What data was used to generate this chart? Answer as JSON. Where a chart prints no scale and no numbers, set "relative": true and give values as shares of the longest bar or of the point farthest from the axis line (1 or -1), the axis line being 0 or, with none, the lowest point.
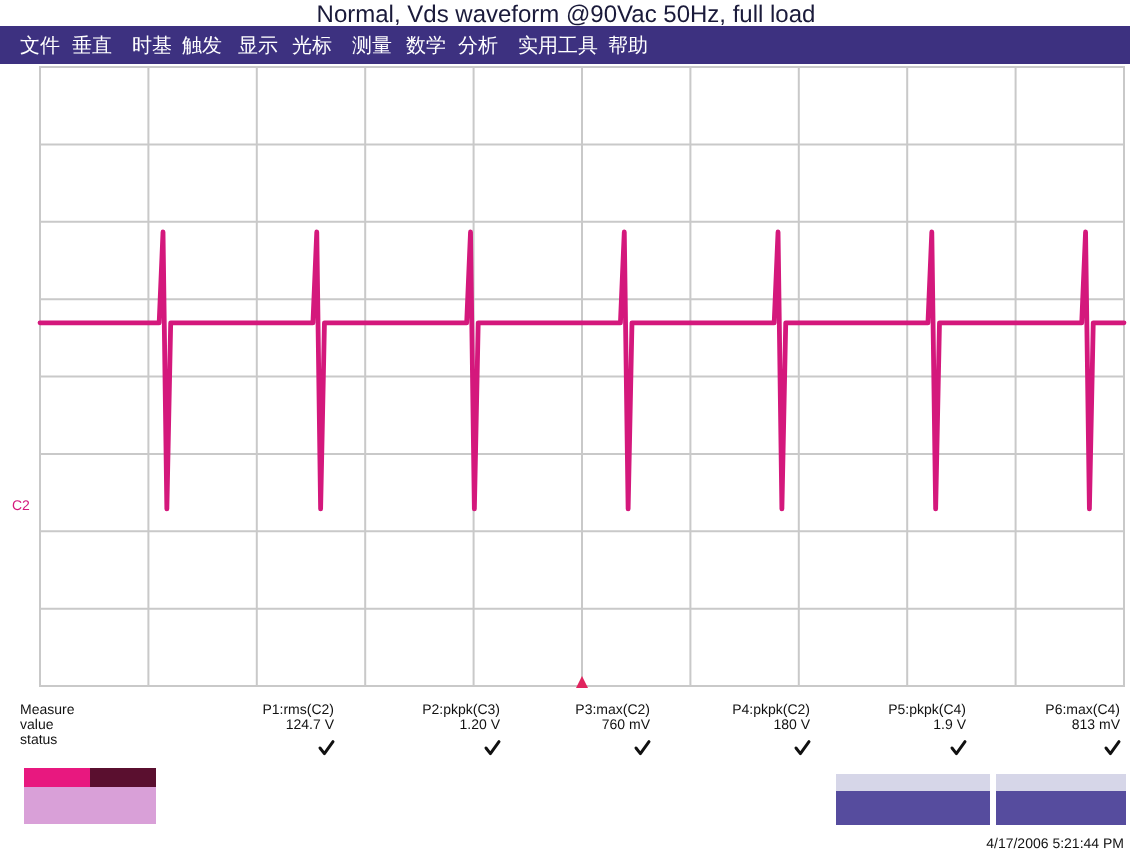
{
  "chart_data": {
    "type": "line",
    "title": "Normal, Vds waveform @90Vac 50Hz, full load",
    "categories": [
      null,
      null,
      null,
      null,
      null,
      null,
      null,
      null,
      null,
      null,
      null,
      null,
      null,
      null,
      null,
      null,
      null,
      null,
      null,
      null,
      null,
      null,
      null,
      null,
      null,
      null,
      null,
      null,
      null,
      null,
      null,
      null,
      null,
      null,
      null,
      null,
      null,
      null,
      null,
      null,
      null,
      null,
      null,
      null,
      null,
      null,
      null,
      null,
      null,
      null,
      null,
      null,
      null,
      null,
      null,
      null,
      null,
      null,
      null,
      null,
      null,
      null,
      null,
      null,
      null,
      null,
      null,
      null,
      null,
      null,
      null,
      null,
      null,
      null,
      null,
      null,
      null,
      null,
      null,
      null,
      null,
      null,
      null,
      null,
      null,
      null,
      null,
      null,
      null,
      null,
      null,
      null,
      null,
      null,
      null,
      null,
      null,
      null,
      null,
      null,
      null,
      null,
      null,
      null,
      null,
      null,
      null,
      null,
      null,
      null,
      null,
      null,
      null,
      null,
      null,
      null,
      null,
      null,
      null,
      null,
      null,
      null,
      null,
      null,
      null,
      null,
      null,
      null,
      null,
      null,
      null,
      null,
      null,
      null,
      null,
      null,
      null,
      null,
      null,
      null,
      null,
      null,
      null,
      null,
      null,
      null,
      null,
      null,
      null,
      null,
      null,
      null,
      null,
      null,
      null,
      null,
      null,
      null,
      null,
      null,
      null,
      null,
      null,
      null,
      null,
      null,
      null,
      null,
      null,
      null,
      null,
      null,
      null,
      null,
      null,
      null,
      null,
      null,
      null,
      null,
      null,
      null,
      null,
      null,
      null,
      null,
      null,
      null,
      null,
      null,
      null,
      null,
      null,
      null,
      null,
      null,
      null,
      null,
      null,
      null,
      null,
      null,
      null,
      null,
      null,
      null,
      null,
      null,
      null,
      null,
      null,
      null,
      null,
      null,
      null,
      null,
      null,
      null,
      null,
      null,
      null,
      null,
      null,
      null,
      null,
      null,
      null,
      null,
      null,
      null,
      null,
      null,
      null,
      null,
      null,
      null,
      null,
      null,
      null,
      null,
      null,
      null,
      null,
      null,
      null,
      null,
      null,
      null,
      null,
      null,
      null,
      null,
      null,
      null,
      null,
      null,
      null,
      null,
      null,
      null,
      null,
      null,
      null,
      null,
      null,
      null,
      null,
      null,
      null,
      null,
      null,
      null,
      null,
      null,
      null,
      null,
      null,
      null,
      null,
      null,
      null,
      null,
      null
    ],
    "values": [
      0.8,
      0.8,
      0.8,
      0.8,
      0.8,
      0.8,
      0.8,
      0.8,
      0.8,
      0.8,
      0.8,
      0.8,
      0.8,
      0.8,
      0.8,
      0.8,
      0.8,
      0.8,
      0.8,
      0.8,
      0.8,
      0.8,
      0.8,
      0.8,
      0.8,
      0.8,
      0.8,
      0.8,
      0.8,
      0.8,
      0.8,
      0.8,
      1,
      0.39,
      0.8,
      0.8,
      0.8,
      0.8,
      0.8,
      0.8,
      0.8,
      0.8,
      0.8,
      0.8,
      0.8,
      0.8,
      0.8,
      0.8,
      0.8,
      0.8,
      0.8,
      0.8,
      0.8,
      0.8,
      0.8,
      0.8,
      0.8,
      0.8,
      0.8,
      0.8,
      0.8,
      0.8,
      0.8,
      0.8,
      0.8,
      0.8,
      0.8,
      0.8,
      0.8,
      0.8,
      0.8,
      0.8,
      1,
      0.39,
      0.8,
      0.8,
      0.8,
      0.8,
      0.8,
      0.8,
      0.8,
      0.8,
      0.8,
      0.8,
      0.8,
      0.8,
      0.8,
      0.8,
      0.8,
      0.8,
      0.8,
      0.8,
      0.8,
      0.8,
      0.8,
      0.8,
      0.8,
      0.8,
      0.8,
      0.8,
      0.8,
      0.8,
      0.8,
      0.8,
      0.8,
      0.8,
      0.8,
      0.8,
      0.8,
      0.8,
      0.8,
      0.8,
      1,
      0.39,
      0.8,
      0.8,
      0.8,
      0.8,
      0.8,
      0.8,
      0.8,
      0.8,
      0.8,
      0.8,
      0.8,
      0.8,
      0.8,
      0.8,
      0.8,
      0.8,
      0.8,
      0.8,
      0.8,
      0.8,
      0.8,
      0.8,
      0.8,
      0.8,
      0.8,
      0.8,
      0.8,
      0.8,
      0.8,
      0.8,
      0.8,
      0.8,
      0.8,
      0.8,
      0.8,
      0.8,
      0.8,
      0.8,
      1,
      0.39,
      0.8,
      0.8,
      0.8,
      0.8,
      0.8,
      0.8,
      0.8,
      0.8,
      0.8,
      0.8,
      0.8,
      0.8,
      0.8,
      0.8,
      0.8,
      0.8,
      0.8,
      0.8,
      0.8,
      0.8,
      0.8,
      0.8,
      0.8,
      0.8,
      0.8,
      0.8,
      0.8,
      0.8,
      0.8,
      0.8,
      0.8,
      0.8,
      0.8,
      0.8,
      0.8,
      0.8,
      0.8,
      0.8,
      1,
      0.39,
      0.8,
      0.8,
      0.8,
      0.8,
      0.8,
      0.8,
      0.8,
      0.8,
      0.8,
      0.8,
      0.8,
      0.8,
      0.8,
      0.8,
      0.8,
      0.8,
      0.8,
      0.8,
      0.8,
      0.8,
      0.8,
      0.8,
      0.8,
      0.8,
      0.8,
      0.8,
      0.8,
      0.8,
      0.8,
      0.8,
      0.8,
      0.8,
      0.8,
      0.8,
      0.8,
      0.8,
      0.8,
      0.8,
      1,
      0.39,
      0.8,
      0.8,
      0.8,
      0.8,
      0.8,
      0.8,
      0.8,
      0.8,
      0.8,
      0.8,
      0.8,
      0.8,
      0.8,
      0.8,
      0.8,
      0.8,
      0.8,
      0.8,
      0.8,
      0.8,
      0.8,
      0.8,
      0.8,
      0.8,
      0.8,
      0.8,
      0.8,
      0.8,
      0.8,
      0.8,
      0.8,
      0.8,
      0.8,
      0.8,
      0.8,
      0.8,
      0.8,
      0.8,
      1,
      0.39,
      0.8,
      0.8,
      0.8,
      0.8,
      0.8,
      0.8,
      0.8,
      0.8,
      0.8
    ],
    "color": "#d4187c",
    "relative": true,
    "grid": true,
    "annotations": [
      "文件",
      "垂直",
      "时基",
      "触发",
      "显示",
      "光标",
      "测量",
      "数学",
      "分析",
      "实用工具",
      "帮助",
      "C2",
      "Measure",
      "value",
      "status",
      "P1:rms(C2)",
      "P2:pkpk(C3)",
      "P3:max(C2)",
      "P4:pkpk(C2)",
      "P5:pkpk(C4)",
      "P6:max(C4)",
      "124.7 V",
      "1.20 V",
      "760 mV",
      "180 V",
      "1.9 V",
      "813 mV",
      "4/17/2006 5:21:44 PM"
    ]
  }
}
